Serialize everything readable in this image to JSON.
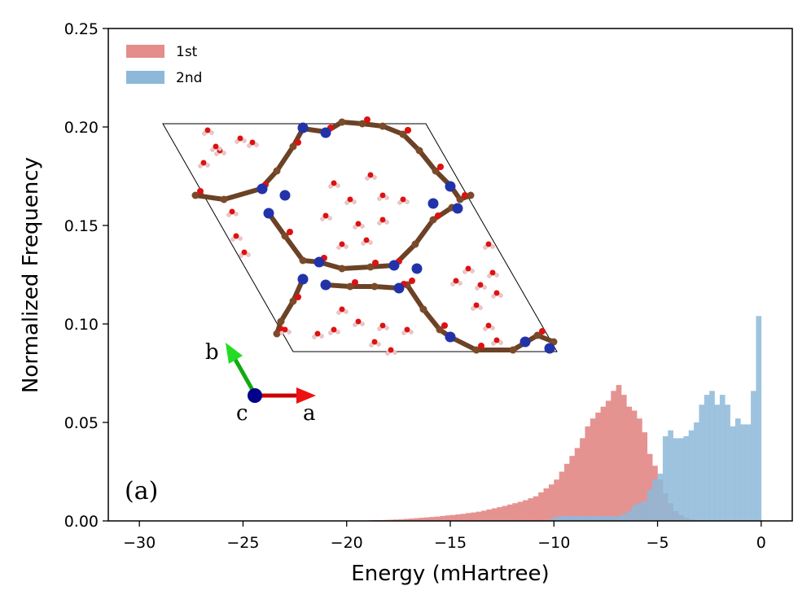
{
  "chart_data": {
    "type": "bar",
    "subtype": "histogram-overlay",
    "xlabel": "Energy (mHartree)",
    "ylabel": "Normalized Frequency",
    "xlim": [
      -31.5,
      1.5
    ],
    "ylim": [
      0,
      0.25
    ],
    "x_ticks": [
      -30,
      -25,
      -20,
      -15,
      -10,
      -5,
      0
    ],
    "x_tick_labels": [
      "−30",
      "−25",
      "−20",
      "−15",
      "−10",
      "−5",
      "0"
    ],
    "y_ticks": [
      0.0,
      0.05,
      0.1,
      0.15,
      0.2,
      0.25
    ],
    "y_tick_labels": [
      "0.00",
      "0.05",
      "0.10",
      "0.15",
      "0.20",
      "0.25"
    ],
    "bin_width": 0.25,
    "legend_position": "top-left",
    "panel_label": "(a)",
    "inset": {
      "description": "crystal structure unit cell",
      "axis_labels": [
        "a",
        "b",
        "c"
      ]
    },
    "series": [
      {
        "name": "1st",
        "color": "#e48d8b",
        "bin_starts": [
          -19.0,
          -18.75,
          -18.5,
          -18.25,
          -18.0,
          -17.75,
          -17.5,
          -17.25,
          -17.0,
          -16.75,
          -16.5,
          -16.25,
          -16.0,
          -15.75,
          -15.5,
          -15.25,
          -15.0,
          -14.75,
          -14.5,
          -14.25,
          -14.0,
          -13.75,
          -13.5,
          -13.25,
          -13.0,
          -12.75,
          -12.5,
          -12.25,
          -12.0,
          -11.75,
          -11.5,
          -11.25,
          -11.0,
          -10.75,
          -10.5,
          -10.25,
          -10.0,
          -9.75,
          -9.5,
          -9.25,
          -9.0,
          -8.75,
          -8.5,
          -8.25,
          -8.0,
          -7.75,
          -7.5,
          -7.25,
          -7.0,
          -6.75,
          -6.5,
          -6.25,
          -6.0,
          -5.75,
          -5.5,
          -5.25,
          -5.0,
          -4.75,
          -4.5,
          -4.25,
          -4.0,
          -3.75,
          -3.5,
          -3.25
        ],
        "values": [
          0.0003,
          0.0004,
          0.0004,
          0.0005,
          0.0006,
          0.0007,
          0.0008,
          0.001,
          0.0012,
          0.0014,
          0.0016,
          0.0018,
          0.002,
          0.0022,
          0.0025,
          0.0028,
          0.003,
          0.0033,
          0.0036,
          0.004,
          0.0043,
          0.0047,
          0.0052,
          0.0058,
          0.0064,
          0.007,
          0.0076,
          0.0083,
          0.009,
          0.0097,
          0.0105,
          0.0115,
          0.0125,
          0.0145,
          0.0165,
          0.0185,
          0.021,
          0.025,
          0.029,
          0.033,
          0.037,
          0.042,
          0.048,
          0.052,
          0.055,
          0.058,
          0.061,
          0.066,
          0.069,
          0.064,
          0.058,
          0.056,
          0.052,
          0.045,
          0.034,
          0.028,
          0.021,
          0.014,
          0.009,
          0.005,
          0.003,
          0.0015,
          0.0008,
          0.0003
        ]
      },
      {
        "name": "2nd",
        "color": "#8db8d9",
        "bin_starts": [
          -10.25,
          -10.0,
          -9.75,
          -9.5,
          -9.25,
          -9.0,
          -8.75,
          -8.5,
          -8.25,
          -8.0,
          -7.75,
          -7.5,
          -7.25,
          -7.0,
          -6.75,
          -6.5,
          -6.25,
          -6.0,
          -5.75,
          -5.5,
          -5.25,
          -5.0,
          -4.75,
          -4.5,
          -4.25,
          -4.0,
          -3.75,
          -3.5,
          -3.25,
          -3.0,
          -2.75,
          -2.5,
          -2.25,
          -2.0,
          -1.75,
          -1.5,
          -1.25,
          -1.0,
          -0.75,
          -0.5,
          -0.25
        ],
        "values": [
          0.001,
          0.002,
          0.0025,
          0.0025,
          0.0025,
          0.0025,
          0.0025,
          0.0025,
          0.0025,
          0.0025,
          0.0025,
          0.0025,
          0.0025,
          0.0025,
          0.0035,
          0.005,
          0.008,
          0.009,
          0.01,
          0.016,
          0.021,
          0.024,
          0.043,
          0.046,
          0.042,
          0.042,
          0.043,
          0.046,
          0.05,
          0.059,
          0.064,
          0.066,
          0.059,
          0.064,
          0.059,
          0.048,
          0.052,
          0.049,
          0.049,
          0.066,
          0.104
        ]
      }
    ]
  }
}
